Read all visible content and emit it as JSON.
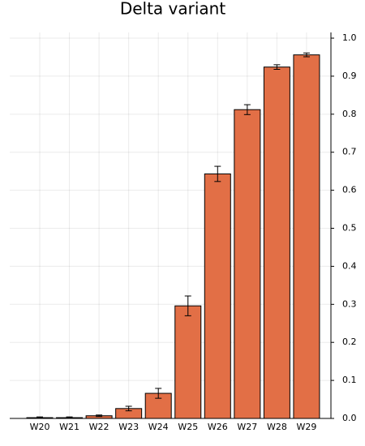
{
  "chart_data": {
    "type": "bar",
    "title": "Delta variant",
    "categories": [
      "W20",
      "W21",
      "W22",
      "W23",
      "W24",
      "W25",
      "W26",
      "W27",
      "W28",
      "W29"
    ],
    "values": [
      0.002,
      0.002,
      0.007,
      0.026,
      0.066,
      0.296,
      0.643,
      0.812,
      0.924,
      0.956
    ],
    "errors": [
      0.002,
      0.002,
      0.002,
      0.006,
      0.013,
      0.026,
      0.02,
      0.013,
      0.006,
      0.005
    ],
    "color": "#e26f46",
    "ylim": [
      0,
      1.015
    ],
    "yticks": [
      {
        "value": 0,
        "label": "0.0"
      },
      {
        "value": 0.1,
        "label": "0.1"
      },
      {
        "value": 0.2,
        "label": "0.2"
      },
      {
        "value": 0.3,
        "label": "0.3"
      },
      {
        "value": 0.4,
        "label": "0.4"
      },
      {
        "value": 0.5,
        "label": "0.5"
      },
      {
        "value": 0.6,
        "label": "0.6"
      },
      {
        "value": 0.7,
        "label": "0.7"
      },
      {
        "value": 0.8,
        "label": "0.8"
      },
      {
        "value": 0.9,
        "label": "0.9"
      },
      {
        "value": 1,
        "label": "1.0"
      }
    ],
    "grid": true
  }
}
